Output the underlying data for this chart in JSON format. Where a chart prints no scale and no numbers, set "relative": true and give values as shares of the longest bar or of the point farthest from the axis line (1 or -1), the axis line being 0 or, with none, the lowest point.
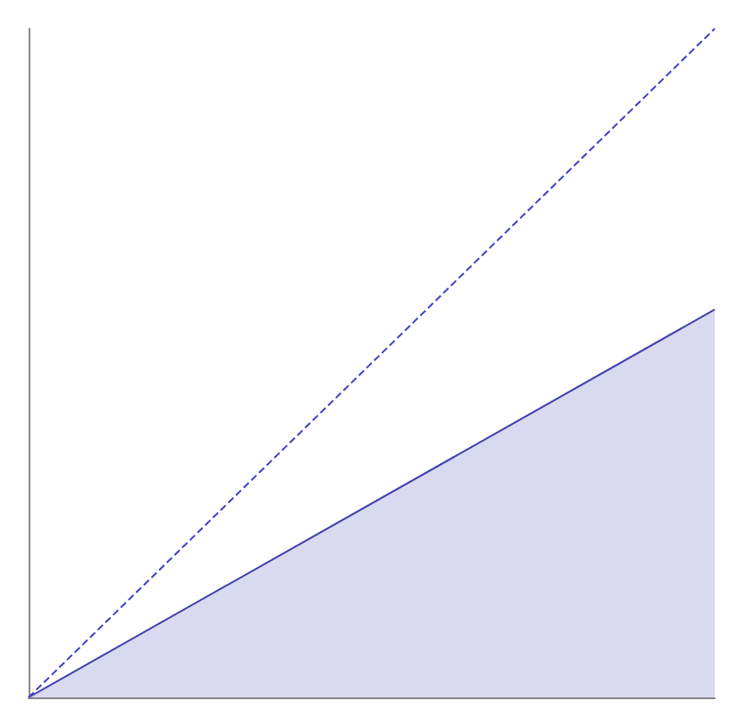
{
  "chart_data": {
    "type": "line",
    "relative": true,
    "categories": [
      null,
      null
    ],
    "grid": false,
    "marker": "none",
    "series": [
      {
        "type": "area",
        "color": "#4040b0",
        "values": [
          0,
          0.58
        ],
        "line_style": "solid"
      },
      {
        "type": "line",
        "color": "#4040c8",
        "values": [
          0,
          1
        ],
        "line_style": "dashed"
      }
    ]
  }
}
